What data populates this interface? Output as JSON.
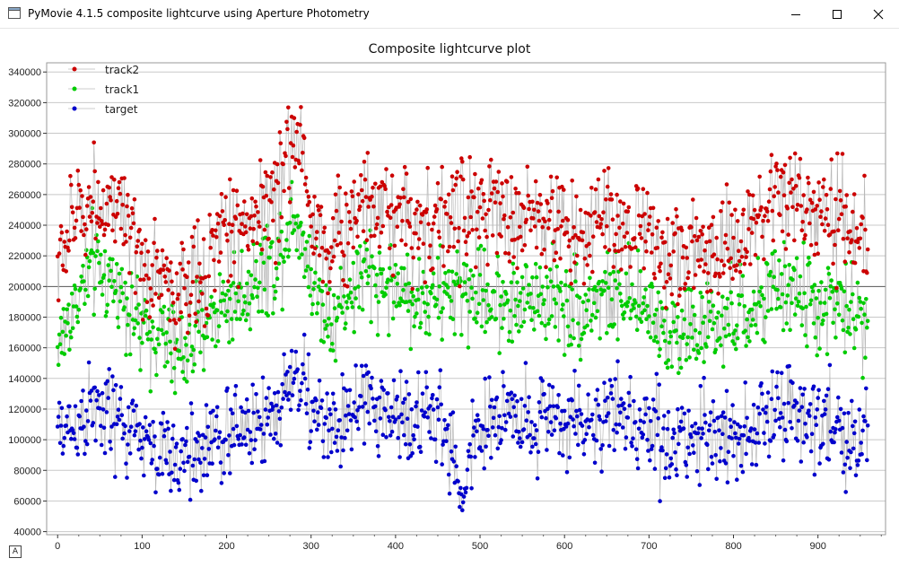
{
  "window": {
    "title": "PyMovie 4.1.5 composite lightcurve using Aperture Photometry",
    "controls": {
      "minimize": "minimize-icon",
      "maximize": "maximize-icon",
      "close": "close-icon"
    }
  },
  "corner_button": "A",
  "chart_data": {
    "type": "scatter",
    "title": "Composite lightcurve plot",
    "xlabel": "",
    "ylabel": "",
    "xlim": [
      -13,
      980
    ],
    "ylim": [
      38000,
      346000
    ],
    "xticks": [
      0,
      100,
      200,
      300,
      400,
      500,
      600,
      700,
      800,
      900
    ],
    "yticks": [
      40000,
      60000,
      80000,
      100000,
      120000,
      140000,
      160000,
      180000,
      200000,
      220000,
      240000,
      260000,
      280000,
      300000,
      320000,
      340000
    ],
    "grid": "horizontal",
    "legend_position": "top-left",
    "points_connected": true,
    "n_points": 960,
    "series": [
      {
        "name": "track2",
        "color": "#cc0000",
        "x": [
          0,
          20,
          40,
          60,
          80,
          100,
          120,
          140,
          160,
          180,
          200,
          220,
          240,
          260,
          270,
          280,
          290,
          300,
          320,
          340,
          360,
          380,
          400,
          420,
          440,
          460,
          480,
          500,
          520,
          540,
          560,
          580,
          600,
          620,
          640,
          660,
          680,
          700,
          720,
          740,
          760,
          780,
          800,
          820,
          840,
          860,
          880,
          900,
          920,
          940,
          960
        ],
        "y": [
          212000,
          245000,
          258000,
          252000,
          240000,
          205000,
          215000,
          192000,
          200000,
          218000,
          240000,
          238000,
          255000,
          255000,
          285000,
          300000,
          290000,
          245000,
          225000,
          235000,
          260000,
          258000,
          250000,
          245000,
          240000,
          245000,
          250000,
          250000,
          248000,
          238000,
          245000,
          248000,
          240000,
          235000,
          245000,
          242000,
          238000,
          240000,
          222000,
          220000,
          225000,
          222000,
          225000,
          230000,
          245000,
          262000,
          255000,
          240000,
          245000,
          238000,
          228000
        ]
      },
      {
        "name": "track1",
        "color": "#00cc00",
        "x": [
          0,
          20,
          40,
          60,
          80,
          100,
          120,
          140,
          160,
          180,
          200,
          220,
          240,
          260,
          270,
          280,
          290,
          300,
          320,
          340,
          360,
          380,
          400,
          420,
          440,
          460,
          480,
          500,
          520,
          540,
          560,
          580,
          600,
          620,
          640,
          660,
          680,
          700,
          720,
          740,
          760,
          780,
          800,
          820,
          840,
          860,
          880,
          900,
          920,
          940,
          960
        ],
        "y": [
          160000,
          188000,
          212000,
          205000,
          195000,
          168000,
          172000,
          155000,
          165000,
          180000,
          190000,
          195000,
          210000,
          215000,
          235000,
          250000,
          235000,
          205000,
          180000,
          190000,
          208000,
          205000,
          198000,
          195000,
          190000,
          195000,
          198000,
          195000,
          192000,
          188000,
          192000,
          195000,
          190000,
          185000,
          195000,
          193000,
          185000,
          188000,
          172000,
          170000,
          172000,
          172000,
          178000,
          182000,
          192000,
          200000,
          195000,
          185000,
          188000,
          182000,
          178000
        ]
      },
      {
        "name": "target",
        "color": "#0000cc",
        "x": [
          0,
          20,
          40,
          60,
          80,
          100,
          120,
          140,
          160,
          180,
          200,
          220,
          240,
          260,
          270,
          280,
          290,
          300,
          320,
          340,
          360,
          380,
          400,
          420,
          440,
          460,
          470,
          475,
          480,
          490,
          500,
          520,
          540,
          560,
          580,
          600,
          620,
          640,
          660,
          680,
          700,
          720,
          740,
          760,
          780,
          800,
          820,
          840,
          860,
          880,
          900,
          920,
          940,
          960
        ],
        "y": [
          105000,
          110000,
          120000,
          115000,
          108000,
          100000,
          92000,
          85000,
          92000,
          98000,
          102000,
          108000,
          112000,
          118000,
          135000,
          142000,
          138000,
          118000,
          108000,
          112000,
          122000,
          120000,
          118000,
          115000,
          112000,
          108000,
          90000,
          65000,
          52000,
          95000,
          110000,
          115000,
          118000,
          112000,
          118000,
          112000,
          110000,
          115000,
          112000,
          110000,
          112000,
          100000,
          98000,
          102000,
          105000,
          105000,
          108000,
          112000,
          118000,
          115000,
          108000,
          110000,
          100000,
          105000
        ]
      }
    ]
  }
}
